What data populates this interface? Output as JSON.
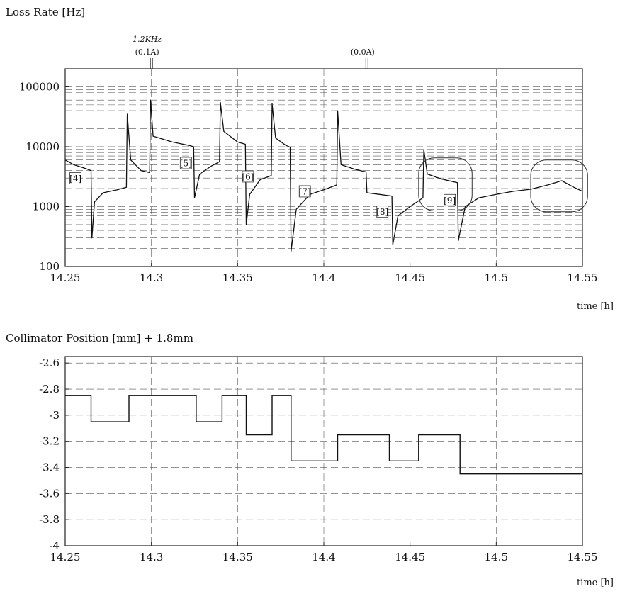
{
  "charts": {
    "loss": {
      "title": "Loss Rate [Hz]",
      "x_unit": "time [h]",
      "annotations": [
        {
          "text_top": "1.2KHz",
          "text_bottom": "(0.1A)",
          "x": 14.3
        },
        {
          "text_top": "",
          "text_bottom": "(0.0A)",
          "x": 14.425
        }
      ],
      "step_marks": [
        {
          "label": "[4]",
          "x": 14.256,
          "y": 2900
        },
        {
          "label": "[5]",
          "x": 14.32,
          "y": 5200
        },
        {
          "label": "[6]",
          "x": 14.356,
          "y": 3100
        },
        {
          "label": "[7]",
          "x": 14.389,
          "y": 1750
        },
        {
          "label": "[8]",
          "x": 14.434,
          "y": 800
        },
        {
          "label": "[9]",
          "x": 14.473,
          "y": 1250
        }
      ],
      "circled_regions": [
        {
          "x": [
            14.455,
            14.486
          ],
          "y": [
            850,
            6500
          ]
        },
        {
          "x": [
            14.52,
            14.553
          ],
          "y": [
            820,
            6000
          ]
        }
      ]
    },
    "collimator": {
      "title": "Collimator Position [mm] + 1.8mm",
      "x_unit": "time [h]"
    }
  },
  "chart_data": [
    {
      "type": "line",
      "title": "Loss Rate [Hz]",
      "xlabel": "time [h]",
      "ylabel": "",
      "xlim": [
        14.25,
        14.55
      ],
      "ylim": [
        100,
        200000
      ],
      "y_scale": "log",
      "x_ticks": [
        "14.25",
        "14.3",
        "14.35",
        "14.4",
        "14.45",
        "14.5",
        "14.55"
      ],
      "y_ticks": [
        "100",
        "1000",
        "10000",
        "100000"
      ],
      "grid": true,
      "series": [
        {
          "points": [
            [
              14.25,
              6000
            ],
            [
              14.255,
              5000
            ],
            [
              14.262,
              4300
            ],
            [
              14.265,
              4000
            ],
            [
              14.2655,
              300
            ],
            [
              14.267,
              1200
            ],
            [
              14.272,
              1700
            ],
            [
              14.28,
              1900
            ],
            [
              14.2855,
              2100
            ],
            [
              14.286,
              35000
            ],
            [
              14.288,
              6000
            ],
            [
              14.294,
              4000
            ],
            [
              14.299,
              3700
            ],
            [
              14.2995,
              60000
            ],
            [
              14.301,
              15000
            ],
            [
              14.312,
              12000
            ],
            [
              14.322,
              10500
            ],
            [
              14.3245,
              10000
            ],
            [
              14.325,
              1400
            ],
            [
              14.328,
              3500
            ],
            [
              14.335,
              4800
            ],
            [
              14.3395,
              5600
            ],
            [
              14.34,
              55000
            ],
            [
              14.342,
              18000
            ],
            [
              14.35,
              12000
            ],
            [
              14.3545,
              11000
            ],
            [
              14.355,
              500
            ],
            [
              14.357,
              1600
            ],
            [
              14.363,
              2800
            ],
            [
              14.3695,
              3300
            ],
            [
              14.37,
              52000
            ],
            [
              14.372,
              14000
            ],
            [
              14.378,
              10500
            ],
            [
              14.3805,
              9800
            ],
            [
              14.381,
              180
            ],
            [
              14.384,
              900
            ],
            [
              14.392,
              1600
            ],
            [
              14.402,
              2000
            ],
            [
              14.4075,
              2300
            ],
            [
              14.408,
              40000
            ],
            [
              14.41,
              5000
            ],
            [
              14.418,
              4200
            ],
            [
              14.4245,
              3800
            ],
            [
              14.425,
              1700
            ],
            [
              14.432,
              1600
            ],
            [
              14.4395,
              1500
            ],
            [
              14.44,
              230
            ],
            [
              14.443,
              700
            ],
            [
              14.45,
              1000
            ],
            [
              14.4575,
              1400
            ],
            [
              14.458,
              9000
            ],
            [
              14.46,
              3500
            ],
            [
              14.468,
              2900
            ],
            [
              14.4775,
              2500
            ],
            [
              14.478,
              270
            ],
            [
              14.482,
              1000
            ],
            [
              14.49,
              1400
            ],
            [
              14.5,
              1600
            ],
            [
              14.51,
              1800
            ],
            [
              14.52,
              1950
            ],
            [
              14.53,
              2300
            ],
            [
              14.538,
              2700
            ],
            [
              14.545,
              2100
            ],
            [
              14.55,
              1800
            ]
          ]
        }
      ]
    },
    {
      "type": "line",
      "title": "Collimator Position [mm] + 1.8mm",
      "xlabel": "time [h]",
      "ylabel": "",
      "xlim": [
        14.25,
        14.55
      ],
      "ylim": [
        -4.0,
        -2.55
      ],
      "x_ticks": [
        "14.25",
        "14.3",
        "14.35",
        "14.4",
        "14.45",
        "14.5",
        "14.55"
      ],
      "y_ticks": [
        "-2.6",
        "-2.8",
        "-3",
        "-3.2",
        "-3.4",
        "-3.6",
        "-3.8",
        "-4"
      ],
      "grid": true,
      "step": true,
      "series": [
        {
          "points": [
            [
              14.25,
              -2.85
            ],
            [
              14.265,
              -2.85
            ],
            [
              14.265,
              -3.05
            ],
            [
              14.287,
              -3.05
            ],
            [
              14.287,
              -2.85
            ],
            [
              14.326,
              -2.85
            ],
            [
              14.326,
              -3.05
            ],
            [
              14.341,
              -3.05
            ],
            [
              14.341,
              -2.85
            ],
            [
              14.355,
              -2.85
            ],
            [
              14.355,
              -3.15
            ],
            [
              14.37,
              -3.15
            ],
            [
              14.37,
              -2.85
            ],
            [
              14.381,
              -2.85
            ],
            [
              14.381,
              -3.35
            ],
            [
              14.408,
              -3.35
            ],
            [
              14.408,
              -3.15
            ],
            [
              14.438,
              -3.15
            ],
            [
              14.438,
              -3.35
            ],
            [
              14.455,
              -3.35
            ],
            [
              14.455,
              -3.15
            ],
            [
              14.479,
              -3.15
            ],
            [
              14.479,
              -3.45
            ],
            [
              14.55,
              -3.45
            ]
          ]
        }
      ]
    }
  ]
}
